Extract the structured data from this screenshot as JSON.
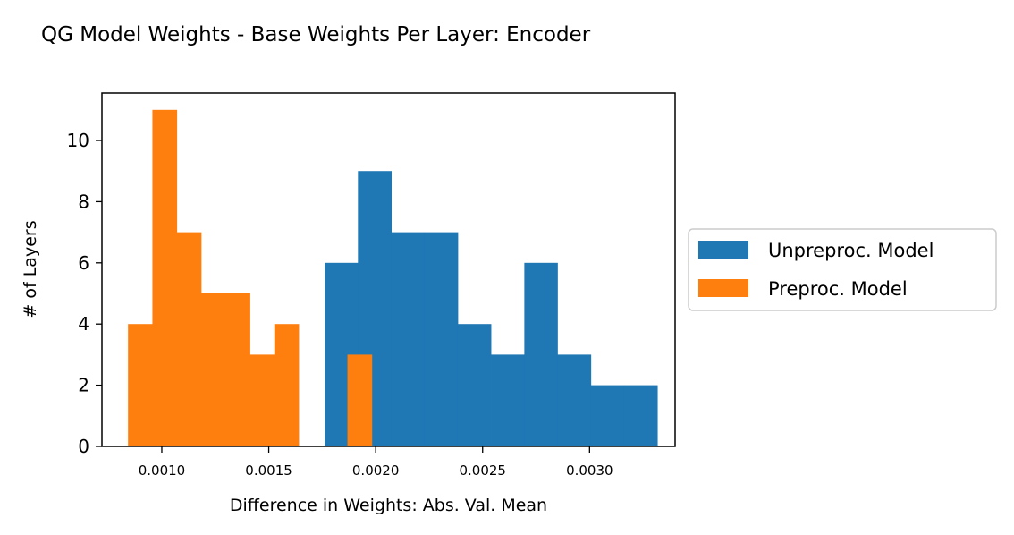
{
  "chart_data": {
    "type": "bar",
    "subtype": "histogram",
    "title": "QG Model Weights - Base Weights Per Layer: Encoder",
    "xlabel": "Difference in Weights: Abs. Val. Mean",
    "ylabel": "# of Layers",
    "xlim": [
      0.00072,
      0.0034
    ],
    "ylim": [
      0,
      11.55
    ],
    "xticks": [
      0.001,
      0.0015,
      0.002,
      0.0025,
      0.003
    ],
    "xtick_labels": [
      "0.0010",
      "0.0015",
      "0.0020",
      "0.0025",
      "0.0030"
    ],
    "yticks": [
      0,
      2,
      4,
      6,
      8,
      10
    ],
    "ytick_labels": [
      "0",
      "2",
      "4",
      "6",
      "8",
      "10"
    ],
    "grid": false,
    "legend_position": "outside-right",
    "series": [
      {
        "name": "Unpreproc. Model",
        "color": "#1f77b4",
        "bin_edges": [
          0.001762,
          0.001917,
          0.002073,
          0.002228,
          0.002384,
          0.002539,
          0.002695,
          0.00285,
          0.003006,
          0.003161,
          0.003317
        ],
        "counts": [
          6,
          9,
          7,
          7,
          4,
          3,
          6,
          3,
          2,
          2
        ]
      },
      {
        "name": "Preproc. Model",
        "color": "#ff7f0e",
        "bin_edges": [
          0.000842,
          0.000956,
          0.00107,
          0.001184,
          0.001298,
          0.001412,
          0.001526,
          0.00164,
          0.001754,
          0.001868,
          0.001982
        ],
        "counts": [
          4,
          11,
          7,
          5,
          5,
          3,
          4,
          0,
          0,
          3
        ]
      }
    ]
  }
}
